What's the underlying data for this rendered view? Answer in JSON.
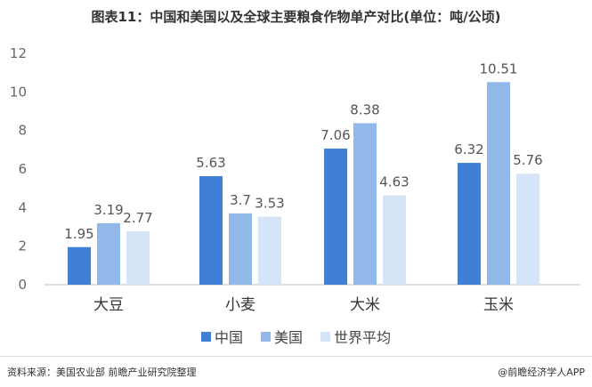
{
  "title": "图表11：中国和美国以及全球主要粮食作物单产对比(单位：吨/公顷)",
  "source": "资料来源：美国农业部 前瞻产业研究院整理",
  "brand": "@前瞻经济学人APP",
  "colors": {
    "china": "#3f80d6",
    "usa": "#92b8ea",
    "world": "#d6e4f7",
    "grid": "#e6e6e6",
    "axis": "#bfbfbf"
  },
  "chart_data": {
    "type": "bar",
    "title": "图表11：中国和美国以及全球主要粮食作物单产对比(单位：吨/公顷)",
    "xlabel": "",
    "ylabel": "",
    "categories": [
      "大豆",
      "小麦",
      "大米",
      "玉米"
    ],
    "series": [
      {
        "name": "中国",
        "values": [
          1.95,
          5.63,
          7.06,
          6.32
        ]
      },
      {
        "name": "美国",
        "values": [
          3.19,
          3.7,
          8.38,
          10.51
        ]
      },
      {
        "name": "世界平均",
        "values": [
          2.77,
          3.53,
          4.63,
          5.76
        ]
      }
    ],
    "data_labels": [
      [
        "1.95",
        "5.63",
        "7.06",
        "6.32"
      ],
      [
        "3.19",
        "3.7",
        "8.38",
        "10.51"
      ],
      [
        "2.77",
        "3.53",
        "4.63",
        "5.76"
      ]
    ],
    "yticks": [
      "0",
      "2",
      "4",
      "6",
      "8",
      "10",
      "12"
    ],
    "ylim": [
      0,
      12
    ],
    "grid": false,
    "legend_position": "bottom"
  }
}
